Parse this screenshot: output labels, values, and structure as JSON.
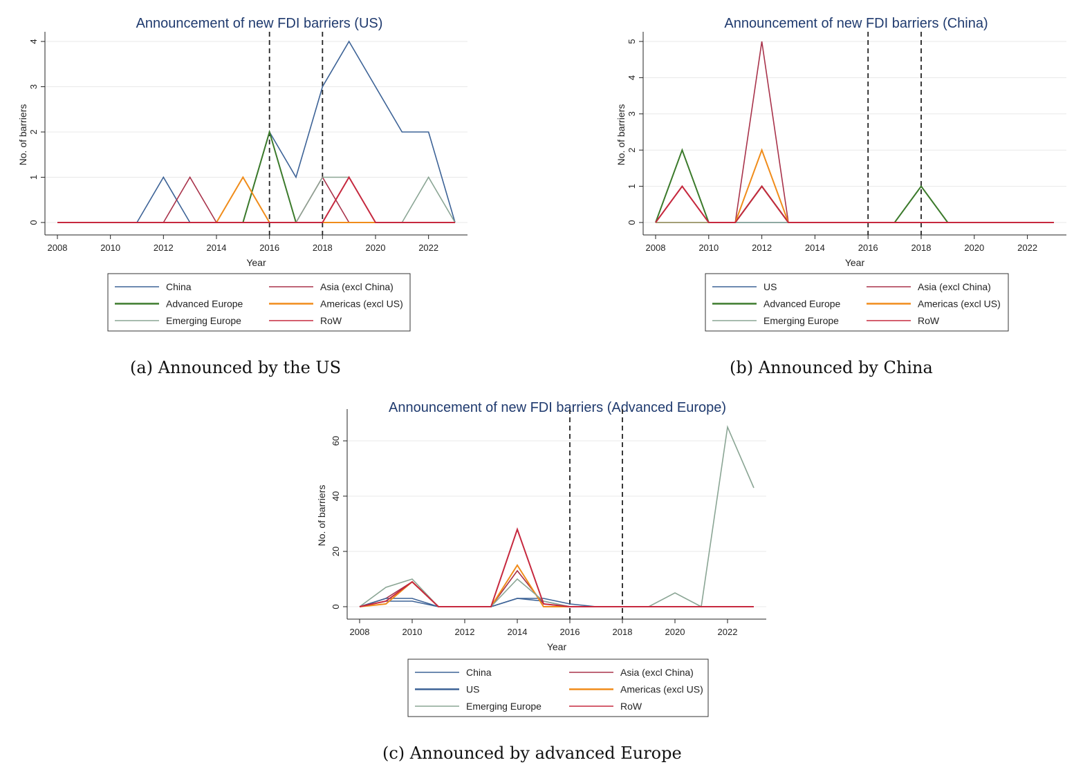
{
  "captions": {
    "a": "(a) Announced by the US",
    "b": "(b) Announced by China",
    "c": "(c) Announced by advanced Europe"
  },
  "colors": {
    "China": "#3c6296",
    "US": "#3c6296",
    "Asia (excl China)": "#a8324a",
    "Advanced Europe": "#3b7a2b",
    "Americas (excl US)": "#f08c1a",
    "Emerging Europe": "#8aa594",
    "RoW": "#c6283e",
    "grid": "#e8e8e8",
    "title": "#1f3a6e"
  },
  "chart_data": [
    {
      "id": "us",
      "type": "line",
      "title": "Announcement of new FDI barriers (US)",
      "xlabel": "Year",
      "ylabel": "No. of barriers",
      "x": [
        2008,
        2009,
        2010,
        2011,
        2012,
        2013,
        2014,
        2015,
        2016,
        2017,
        2018,
        2019,
        2020,
        2021,
        2022,
        2023
      ],
      "xticks": [
        2008,
        2010,
        2012,
        2014,
        2016,
        2018,
        2020,
        2022
      ],
      "yticks": [
        0,
        1,
        2,
        3,
        4
      ],
      "ylim": [
        0,
        4
      ],
      "vlines": [
        2016,
        2018
      ],
      "grid": true,
      "legend_position": "bottom",
      "series": [
        {
          "name": "China",
          "values": [
            0,
            0,
            0,
            0,
            1,
            0,
            0,
            0,
            2,
            1,
            3,
            4,
            3,
            2,
            2,
            0
          ]
        },
        {
          "name": "Asia (excl China)",
          "values": [
            0,
            0,
            0,
            0,
            0,
            1,
            0,
            0,
            0,
            0,
            1,
            0,
            0,
            0,
            0,
            0
          ]
        },
        {
          "name": "Advanced Europe",
          "values": [
            0,
            0,
            0,
            0,
            0,
            0,
            0,
            0,
            2,
            0,
            0,
            0,
            0,
            0,
            0,
            0
          ]
        },
        {
          "name": "Americas (excl US)",
          "values": [
            0,
            0,
            0,
            0,
            0,
            0,
            0,
            1,
            0,
            0,
            0,
            0,
            0,
            0,
            0,
            0
          ]
        },
        {
          "name": "Emerging Europe",
          "values": [
            0,
            0,
            0,
            0,
            0,
            0,
            0,
            0,
            0,
            0,
            1,
            1,
            0,
            0,
            1,
            0
          ]
        },
        {
          "name": "RoW",
          "values": [
            0,
            0,
            0,
            0,
            0,
            0,
            0,
            0,
            0,
            0,
            0,
            1,
            0,
            0,
            0,
            0
          ]
        }
      ]
    },
    {
      "id": "china",
      "type": "line",
      "title": "Announcement of new FDI barriers (China)",
      "xlabel": "Year",
      "ylabel": "No. of barriers",
      "x": [
        2008,
        2009,
        2010,
        2011,
        2012,
        2013,
        2014,
        2015,
        2016,
        2017,
        2018,
        2019,
        2020,
        2021,
        2022,
        2023
      ],
      "xticks": [
        2008,
        2010,
        2012,
        2014,
        2016,
        2018,
        2020,
        2022
      ],
      "yticks": [
        0,
        1,
        2,
        3,
        4,
        5
      ],
      "ylim": [
        0,
        5
      ],
      "vlines": [
        2016,
        2018
      ],
      "grid": true,
      "legend_position": "bottom",
      "series": [
        {
          "name": "US",
          "values": [
            0,
            0,
            0,
            0,
            0,
            0,
            0,
            0,
            0,
            0,
            0,
            0,
            0,
            0,
            0,
            0
          ]
        },
        {
          "name": "Asia (excl China)",
          "values": [
            0,
            1,
            0,
            0,
            5,
            0,
            0,
            0,
            0,
            0,
            0,
            0,
            0,
            0,
            0,
            0
          ]
        },
        {
          "name": "Advanced Europe",
          "values": [
            0,
            2,
            0,
            0,
            1,
            0,
            0,
            0,
            0,
            0,
            1,
            0,
            0,
            0,
            0,
            0
          ]
        },
        {
          "name": "Americas (excl US)",
          "values": [
            0,
            0,
            0,
            0,
            2,
            0,
            0,
            0,
            0,
            0,
            0,
            0,
            0,
            0,
            0,
            0
          ]
        },
        {
          "name": "Emerging Europe",
          "values": [
            0,
            0,
            0,
            0,
            0,
            0,
            0,
            0,
            0,
            0,
            0,
            0,
            0,
            0,
            0,
            0
          ]
        },
        {
          "name": "RoW",
          "values": [
            0,
            1,
            0,
            0,
            1,
            0,
            0,
            0,
            0,
            0,
            0,
            0,
            0,
            0,
            0,
            0
          ]
        }
      ]
    },
    {
      "id": "europe",
      "type": "line",
      "title": "Announcement of new FDI barriers (Advanced Europe)",
      "xlabel": "Year",
      "ylabel": "No. of barriers",
      "x": [
        2008,
        2009,
        2010,
        2011,
        2012,
        2013,
        2014,
        2015,
        2016,
        2017,
        2018,
        2019,
        2020,
        2021,
        2022,
        2023
      ],
      "xticks": [
        2008,
        2010,
        2012,
        2014,
        2016,
        2018,
        2020,
        2022
      ],
      "yticks": [
        0,
        20,
        40,
        60
      ],
      "ylim": [
        0,
        68
      ],
      "vlines": [
        2016,
        2018
      ],
      "grid": true,
      "legend_position": "bottom",
      "series": [
        {
          "name": "China",
          "values": [
            0,
            2,
            2,
            0,
            0,
            0,
            3,
            3,
            1,
            0,
            0,
            0,
            0,
            0,
            0,
            0
          ]
        },
        {
          "name": "Asia (excl China)",
          "values": [
            0,
            3,
            9,
            0,
            0,
            0,
            13,
            1,
            0,
            0,
            0,
            0,
            0,
            0,
            0,
            0
          ]
        },
        {
          "name": "US",
          "values": [
            0,
            3,
            3,
            0,
            0,
            0,
            3,
            2,
            0,
            0,
            0,
            0,
            0,
            0,
            0,
            0
          ]
        },
        {
          "name": "Americas (excl US)",
          "values": [
            0,
            1,
            9,
            0,
            0,
            0,
            15,
            0,
            0,
            0,
            0,
            0,
            0,
            0,
            0,
            0
          ]
        },
        {
          "name": "Emerging Europe",
          "values": [
            0,
            7,
            10,
            0,
            0,
            0,
            10,
            2,
            0,
            0,
            0,
            0,
            5,
            0,
            65,
            43
          ]
        },
        {
          "name": "RoW",
          "values": [
            0,
            2,
            9,
            0,
            0,
            0,
            28,
            1,
            0,
            0,
            0,
            0,
            0,
            0,
            0,
            0
          ]
        }
      ]
    }
  ]
}
